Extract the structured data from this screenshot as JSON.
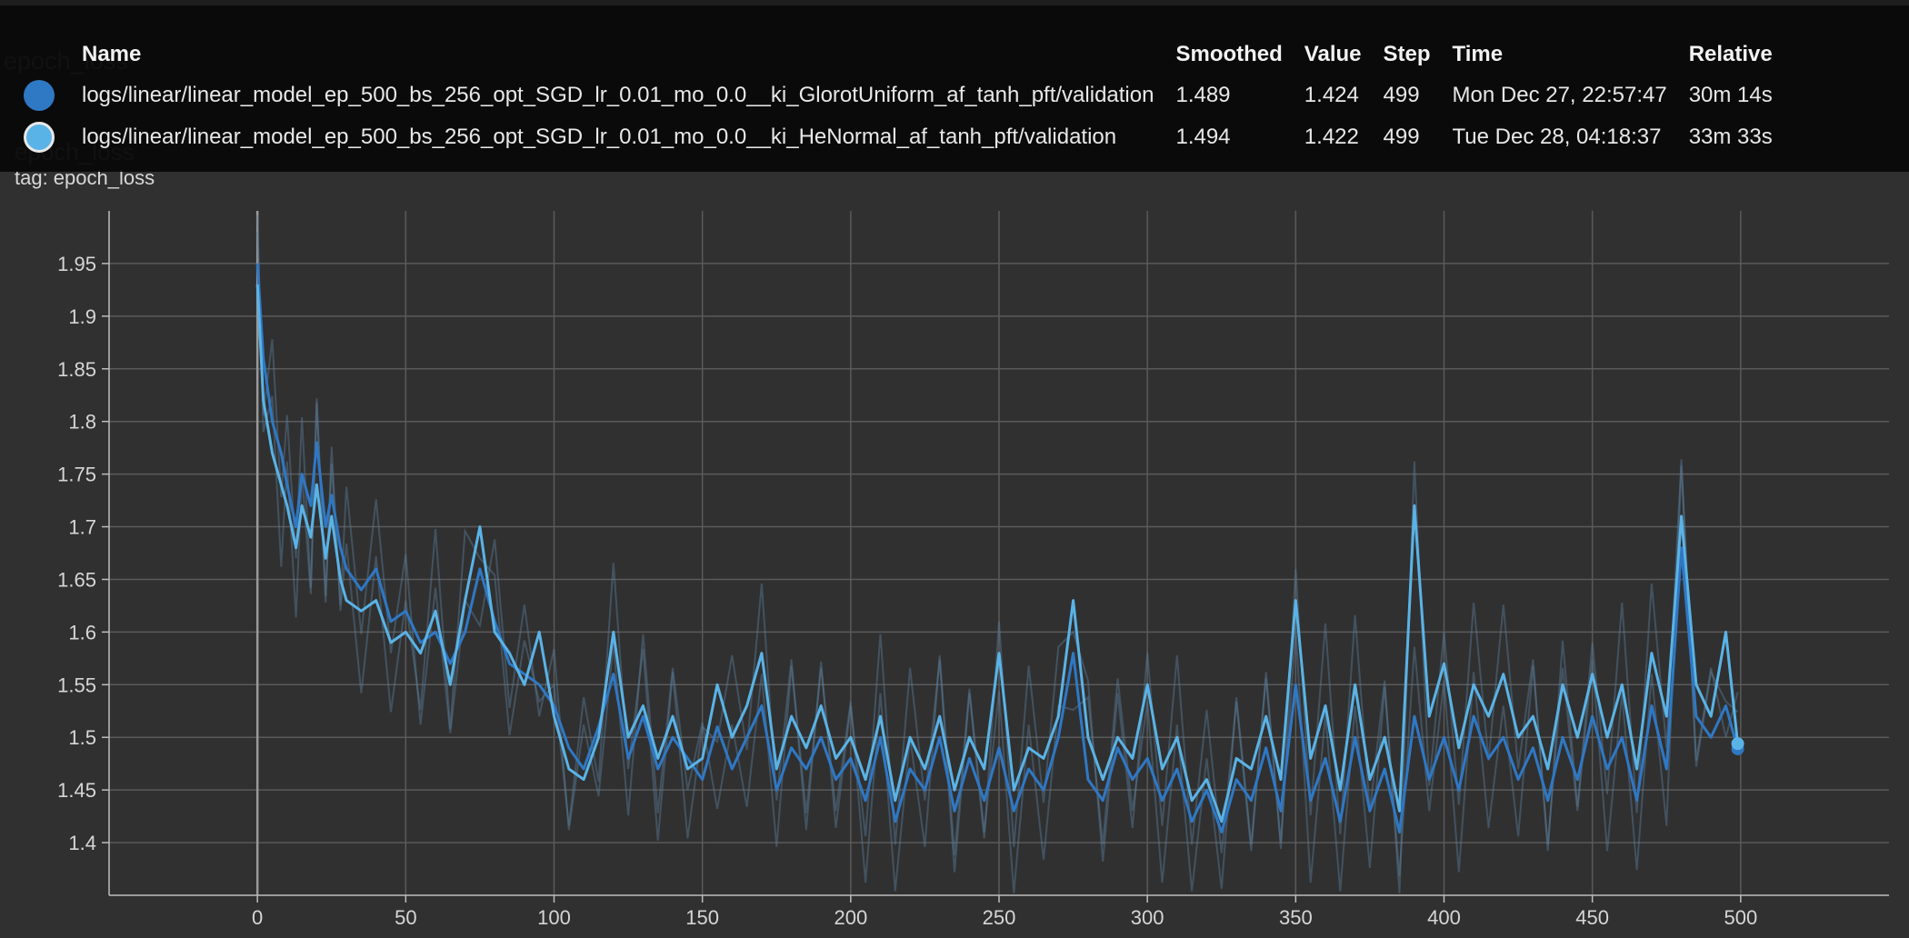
{
  "card": {
    "title": "epoch_loss",
    "subtitle": "epoch_loss",
    "tag_label": "tag: epoch_loss"
  },
  "tooltip": {
    "headers": {
      "name": "Name",
      "smoothed": "Smoothed",
      "value": "Value",
      "step": "Step",
      "time": "Time",
      "relative": "Relative"
    },
    "rows": [
      {
        "name": "logs/linear/linear_model_ep_500_bs_256_opt_SGD_lr_0.01_mo_0.0__ki_GlorotUniform_af_tanh_pft/validation",
        "smoothed": "1.489",
        "value": "1.424",
        "step": "499",
        "time": "Mon Dec 27, 22:57:47",
        "relative": "30m 14s",
        "color": "#2f78c4"
      },
      {
        "name": "logs/linear/linear_model_ep_500_bs_256_opt_SGD_lr_0.01_mo_0.0__ki_HeNormal_af_tanh_pft/validation",
        "smoothed": "1.494",
        "value": "1.422",
        "step": "499",
        "time": "Tue Dec 28, 04:18:37",
        "relative": "33m 33s",
        "color": "#5ab3e6"
      }
    ]
  },
  "colors": {
    "background": "#303030",
    "grid": "#5a5a5a",
    "series_1": "#2f78c4",
    "series_2": "#5ab3e6",
    "raw_trace": "#5a7d99"
  },
  "chart_data": {
    "type": "line",
    "xlim": [
      -50,
      550
    ],
    "ylim": [
      1.35,
      2.0
    ],
    "x_ticks": [
      "0",
      "50",
      "100",
      "150",
      "200",
      "250",
      "300",
      "350",
      "400",
      "450",
      "500"
    ],
    "y_ticks": [
      "1.4",
      "1.45",
      "1.5",
      "1.55",
      "1.6",
      "1.65",
      "1.7",
      "1.75",
      "1.8",
      "1.85",
      "1.9",
      "1.95"
    ],
    "grid": true,
    "series": [
      {
        "name": "logs/linear/linear_model_ep_500_bs_256_opt_SGD_lr_0.01_mo_0.0__ki_GlorotUniform_af_tanh_pft/validation",
        "color": "#2f78c4",
        "x": [
          0,
          2,
          5,
          8,
          10,
          13,
          15,
          18,
          20,
          23,
          25,
          28,
          30,
          35,
          40,
          45,
          50,
          55,
          60,
          65,
          70,
          75,
          80,
          85,
          90,
          95,
          100,
          105,
          110,
          115,
          120,
          125,
          130,
          135,
          140,
          145,
          150,
          155,
          160,
          165,
          170,
          175,
          180,
          185,
          190,
          195,
          200,
          205,
          210,
          215,
          220,
          225,
          230,
          235,
          240,
          245,
          250,
          255,
          260,
          265,
          270,
          275,
          280,
          285,
          290,
          295,
          300,
          305,
          310,
          315,
          320,
          325,
          330,
          335,
          340,
          345,
          350,
          355,
          360,
          365,
          370,
          375,
          380,
          385,
          390,
          395,
          400,
          405,
          410,
          415,
          420,
          425,
          430,
          435,
          440,
          445,
          450,
          455,
          460,
          465,
          470,
          475,
          480,
          485,
          490,
          495,
          499
        ],
        "y": [
          1.95,
          1.86,
          1.8,
          1.77,
          1.74,
          1.7,
          1.75,
          1.72,
          1.78,
          1.7,
          1.73,
          1.68,
          1.66,
          1.64,
          1.66,
          1.61,
          1.62,
          1.59,
          1.6,
          1.57,
          1.6,
          1.66,
          1.61,
          1.57,
          1.56,
          1.55,
          1.53,
          1.49,
          1.47,
          1.51,
          1.56,
          1.48,
          1.52,
          1.47,
          1.5,
          1.48,
          1.46,
          1.51,
          1.47,
          1.5,
          1.53,
          1.45,
          1.49,
          1.47,
          1.5,
          1.46,
          1.48,
          1.44,
          1.5,
          1.42,
          1.47,
          1.45,
          1.5,
          1.43,
          1.48,
          1.44,
          1.49,
          1.43,
          1.47,
          1.45,
          1.5,
          1.58,
          1.46,
          1.44,
          1.49,
          1.46,
          1.48,
          1.44,
          1.47,
          1.42,
          1.45,
          1.41,
          1.46,
          1.44,
          1.49,
          1.43,
          1.55,
          1.44,
          1.48,
          1.42,
          1.5,
          1.43,
          1.47,
          1.41,
          1.52,
          1.46,
          1.5,
          1.45,
          1.52,
          1.48,
          1.5,
          1.46,
          1.49,
          1.44,
          1.5,
          1.46,
          1.52,
          1.47,
          1.5,
          1.44,
          1.53,
          1.47,
          1.68,
          1.52,
          1.5,
          1.53,
          1.489
        ]
      },
      {
        "name": "logs/linear/linear_model_ep_500_bs_256_opt_SGD_lr_0.01_mo_0.0__ki_HeNormal_af_tanh_pft/validation",
        "color": "#5ab3e6",
        "x": [
          0,
          2,
          5,
          8,
          10,
          13,
          15,
          18,
          20,
          23,
          25,
          28,
          30,
          35,
          40,
          45,
          50,
          55,
          60,
          65,
          70,
          75,
          80,
          85,
          90,
          95,
          100,
          105,
          110,
          115,
          120,
          125,
          130,
          135,
          140,
          145,
          150,
          155,
          160,
          165,
          170,
          175,
          180,
          185,
          190,
          195,
          200,
          205,
          210,
          215,
          220,
          225,
          230,
          235,
          240,
          245,
          250,
          255,
          260,
          265,
          270,
          275,
          280,
          285,
          290,
          295,
          300,
          305,
          310,
          315,
          320,
          325,
          330,
          335,
          340,
          345,
          350,
          355,
          360,
          365,
          370,
          375,
          380,
          385,
          390,
          395,
          400,
          405,
          410,
          415,
          420,
          425,
          430,
          435,
          440,
          445,
          450,
          455,
          460,
          465,
          470,
          475,
          480,
          485,
          490,
          495,
          499
        ],
        "y": [
          1.93,
          1.82,
          1.77,
          1.74,
          1.72,
          1.68,
          1.72,
          1.69,
          1.74,
          1.67,
          1.71,
          1.65,
          1.63,
          1.62,
          1.63,
          1.59,
          1.6,
          1.58,
          1.62,
          1.55,
          1.63,
          1.7,
          1.6,
          1.58,
          1.55,
          1.6,
          1.52,
          1.47,
          1.46,
          1.5,
          1.6,
          1.5,
          1.53,
          1.48,
          1.52,
          1.47,
          1.48,
          1.55,
          1.5,
          1.53,
          1.58,
          1.47,
          1.52,
          1.49,
          1.53,
          1.48,
          1.5,
          1.46,
          1.52,
          1.44,
          1.5,
          1.47,
          1.52,
          1.45,
          1.5,
          1.47,
          1.58,
          1.45,
          1.49,
          1.48,
          1.52,
          1.63,
          1.5,
          1.46,
          1.5,
          1.48,
          1.55,
          1.47,
          1.5,
          1.44,
          1.46,
          1.42,
          1.48,
          1.47,
          1.52,
          1.46,
          1.63,
          1.48,
          1.53,
          1.45,
          1.55,
          1.46,
          1.5,
          1.43,
          1.72,
          1.52,
          1.57,
          1.49,
          1.55,
          1.52,
          1.56,
          1.5,
          1.52,
          1.47,
          1.55,
          1.5,
          1.56,
          1.5,
          1.55,
          1.47,
          1.58,
          1.52,
          1.71,
          1.55,
          1.52,
          1.6,
          1.494
        ]
      }
    ]
  }
}
